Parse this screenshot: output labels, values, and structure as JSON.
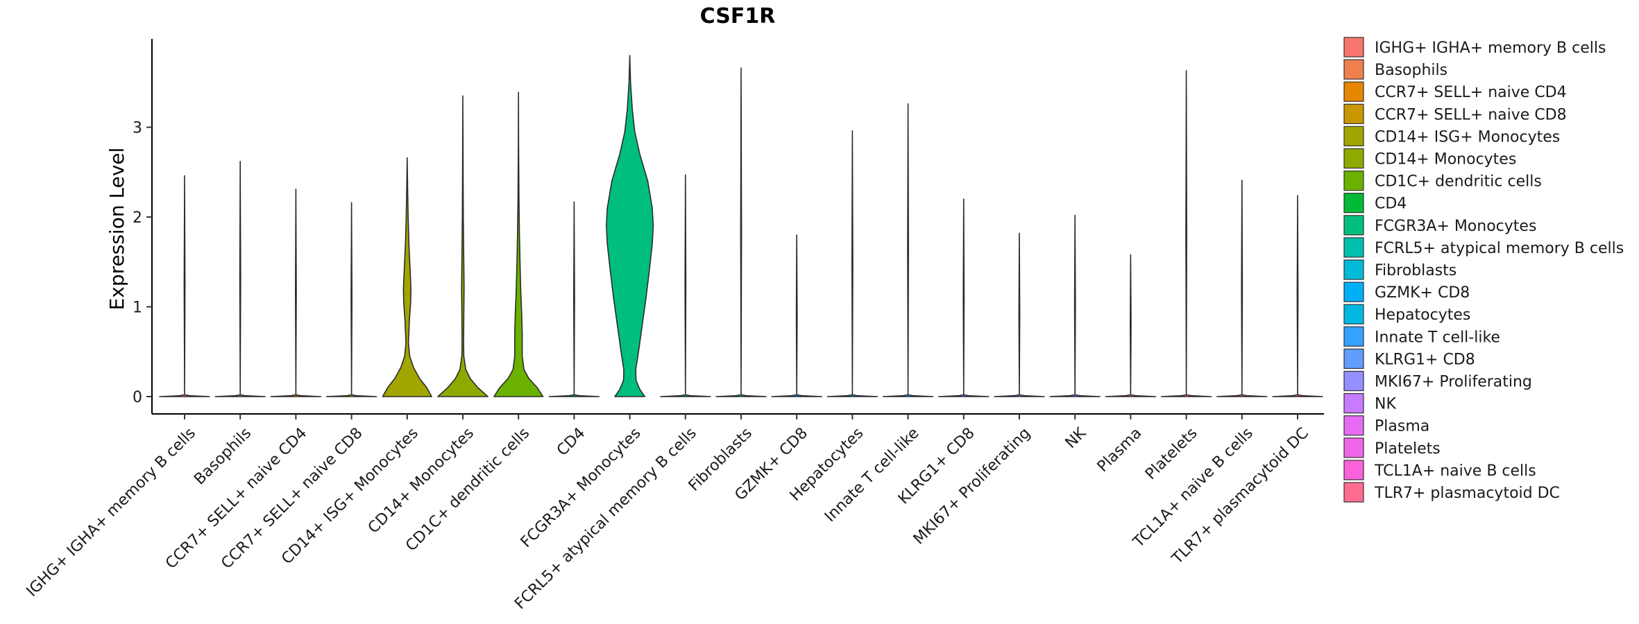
{
  "chart_data": {
    "type": "violin",
    "title": "CSF1R",
    "xlabel": "",
    "ylabel": "Expression Level",
    "ylim": [
      -0.18,
      4.0
    ],
    "yticks": [
      0,
      1,
      2,
      3
    ],
    "legend_position": "right",
    "categories": [
      "IGHG+ IGHA+ memory B cells",
      "Basophils",
      "CCR7+ SELL+ naive CD4",
      "CCR7+ SELL+ naive CD8",
      "CD14+ ISG+ Monocytes",
      "CD14+ Monocytes",
      "CD1C+ dendritic cells",
      "CD4",
      "FCGR3A+ Monocytes",
      "FCRL5+ atypical memory B cells",
      "Fibroblasts",
      "GZMK+ CD8",
      "Hepatocytes",
      "Innate T cell-like",
      "KLRG1+ CD8",
      "MKI67+ Proliferating",
      "NK",
      "Plasma",
      "Platelets",
      "TCL1A+ naive B cells",
      "TLR7+ plasmacytoid DC"
    ],
    "legend_labels": [
      " IGHG+ IGHA+ memory B cells",
      "Basophils",
      "CCR7+ SELL+ naive CD4",
      "CCR7+ SELL+ naive CD8",
      "CD14+ ISG+ Monocytes",
      "CD14+ Monocytes",
      "CD1C+ dendritic cells",
      "CD4",
      "FCGR3A+ Monocytes",
      "FCRL5+ atypical memory B cells",
      "Fibroblasts",
      "GZMK+ CD8",
      "Hepatocytes",
      "Innate T cell-like",
      "KLRG1+ CD8",
      "MKI67+ Proliferating",
      "NK",
      "Plasma",
      "Platelets",
      "TCL1A+ naive B cells",
      "TLR7+ plasmacytoid DC"
    ],
    "colors": [
      "#F8766D",
      "#F07F4F",
      "#E58700",
      "#C99800",
      "#A3A500",
      "#8DAA00",
      "#6BB100",
      "#00BA38",
      "#00BF7D",
      "#00C0AF",
      "#00BCD8",
      "#00B0F6",
      "#00B9E3",
      "#35A2FF",
      "#619CFF",
      "#9590FF",
      "#C77CFF",
      "#E76BF3",
      "#F166E8",
      "#FA62DB",
      "#FF6C91"
    ],
    "max_values": [
      2.46,
      2.62,
      2.31,
      2.16,
      2.66,
      3.35,
      3.39,
      2.17,
      3.8,
      2.47,
      3.66,
      1.8,
      2.96,
      3.26,
      2.2,
      1.82,
      2.02,
      1.58,
      3.63,
      2.41,
      2.24
    ],
    "density_profiles": [
      [
        [
          0,
          1.0
        ],
        [
          0.01,
          0.2
        ],
        [
          0.02,
          0.0
        ]
      ],
      [
        [
          0,
          1.0
        ],
        [
          0.01,
          0.2
        ],
        [
          0.02,
          0.0
        ]
      ],
      [
        [
          0,
          1.0
        ],
        [
          0.01,
          0.2
        ],
        [
          0.02,
          0.0
        ]
      ],
      [
        [
          0,
          1.0
        ],
        [
          0.01,
          0.2
        ],
        [
          0.02,
          0.0
        ]
      ],
      [
        [
          0,
          0.98
        ],
        [
          0.1,
          0.78
        ],
        [
          0.2,
          0.5
        ],
        [
          0.32,
          0.26
        ],
        [
          0.45,
          0.1
        ],
        [
          0.6,
          0.05
        ],
        [
          0.85,
          0.09
        ],
        [
          1.05,
          0.14
        ],
        [
          1.2,
          0.15
        ],
        [
          1.4,
          0.12
        ],
        [
          1.7,
          0.07
        ],
        [
          2.0,
          0.04
        ],
        [
          2.3,
          0.02
        ],
        [
          2.66,
          0.0
        ]
      ],
      [
        [
          0,
          1.0
        ],
        [
          0.1,
          0.6
        ],
        [
          0.2,
          0.3
        ],
        [
          0.3,
          0.12
        ],
        [
          0.45,
          0.04
        ],
        [
          0.6,
          0.03
        ],
        [
          0.9,
          0.04
        ],
        [
          1.2,
          0.05
        ],
        [
          1.5,
          0.04
        ],
        [
          2.0,
          0.02
        ],
        [
          2.5,
          0.01
        ],
        [
          3.35,
          0.0
        ]
      ],
      [
        [
          0,
          0.98
        ],
        [
          0.1,
          0.75
        ],
        [
          0.2,
          0.42
        ],
        [
          0.3,
          0.22
        ],
        [
          0.45,
          0.15
        ],
        [
          0.7,
          0.15
        ],
        [
          0.9,
          0.13
        ],
        [
          1.2,
          0.09
        ],
        [
          1.5,
          0.06
        ],
        [
          1.8,
          0.04
        ],
        [
          2.2,
          0.02
        ],
        [
          2.8,
          0.005
        ],
        [
          3.39,
          0.0
        ]
      ],
      [
        [
          0,
          1.0
        ],
        [
          0.01,
          0.2
        ],
        [
          0.02,
          0.0
        ]
      ],
      [
        [
          0,
          0.6
        ],
        [
          0.08,
          0.4
        ],
        [
          0.18,
          0.25
        ],
        [
          0.3,
          0.24
        ],
        [
          0.5,
          0.35
        ],
        [
          0.8,
          0.5
        ],
        [
          1.1,
          0.65
        ],
        [
          1.4,
          0.78
        ],
        [
          1.7,
          0.9
        ],
        [
          1.9,
          0.94
        ],
        [
          2.1,
          0.9
        ],
        [
          2.4,
          0.72
        ],
        [
          2.7,
          0.4
        ],
        [
          2.95,
          0.2
        ],
        [
          3.2,
          0.1
        ],
        [
          3.5,
          0.03
        ],
        [
          3.8,
          0.0
        ]
      ],
      [
        [
          0,
          1.0
        ],
        [
          0.01,
          0.2
        ],
        [
          0.02,
          0.0
        ]
      ],
      [
        [
          0,
          1.0
        ],
        [
          0.01,
          0.2
        ],
        [
          0.02,
          0.0
        ]
      ],
      [
        [
          0,
          1.0
        ],
        [
          0.01,
          0.2
        ],
        [
          0.02,
          0.0
        ]
      ],
      [
        [
          0,
          1.0
        ],
        [
          0.01,
          0.2
        ],
        [
          0.02,
          0.0
        ]
      ],
      [
        [
          0,
          1.0
        ],
        [
          0.01,
          0.2
        ],
        [
          0.02,
          0.0
        ]
      ],
      [
        [
          0,
          1.0
        ],
        [
          0.01,
          0.2
        ],
        [
          0.02,
          0.0
        ]
      ],
      [
        [
          0,
          1.0
        ],
        [
          0.01,
          0.2
        ],
        [
          0.02,
          0.0
        ]
      ],
      [
        [
          0,
          1.0
        ],
        [
          0.01,
          0.2
        ],
        [
          0.02,
          0.0
        ]
      ],
      [
        [
          0,
          1.0
        ],
        [
          0.01,
          0.2
        ],
        [
          0.02,
          0.0
        ]
      ],
      [
        [
          0,
          1.0
        ],
        [
          0.01,
          0.2
        ],
        [
          0.02,
          0.0
        ]
      ],
      [
        [
          0,
          1.0
        ],
        [
          0.01,
          0.2
        ],
        [
          0.02,
          0.0
        ]
      ],
      [
        [
          0,
          1.0
        ],
        [
          0.01,
          0.2
        ],
        [
          0.02,
          0.0
        ]
      ]
    ]
  }
}
